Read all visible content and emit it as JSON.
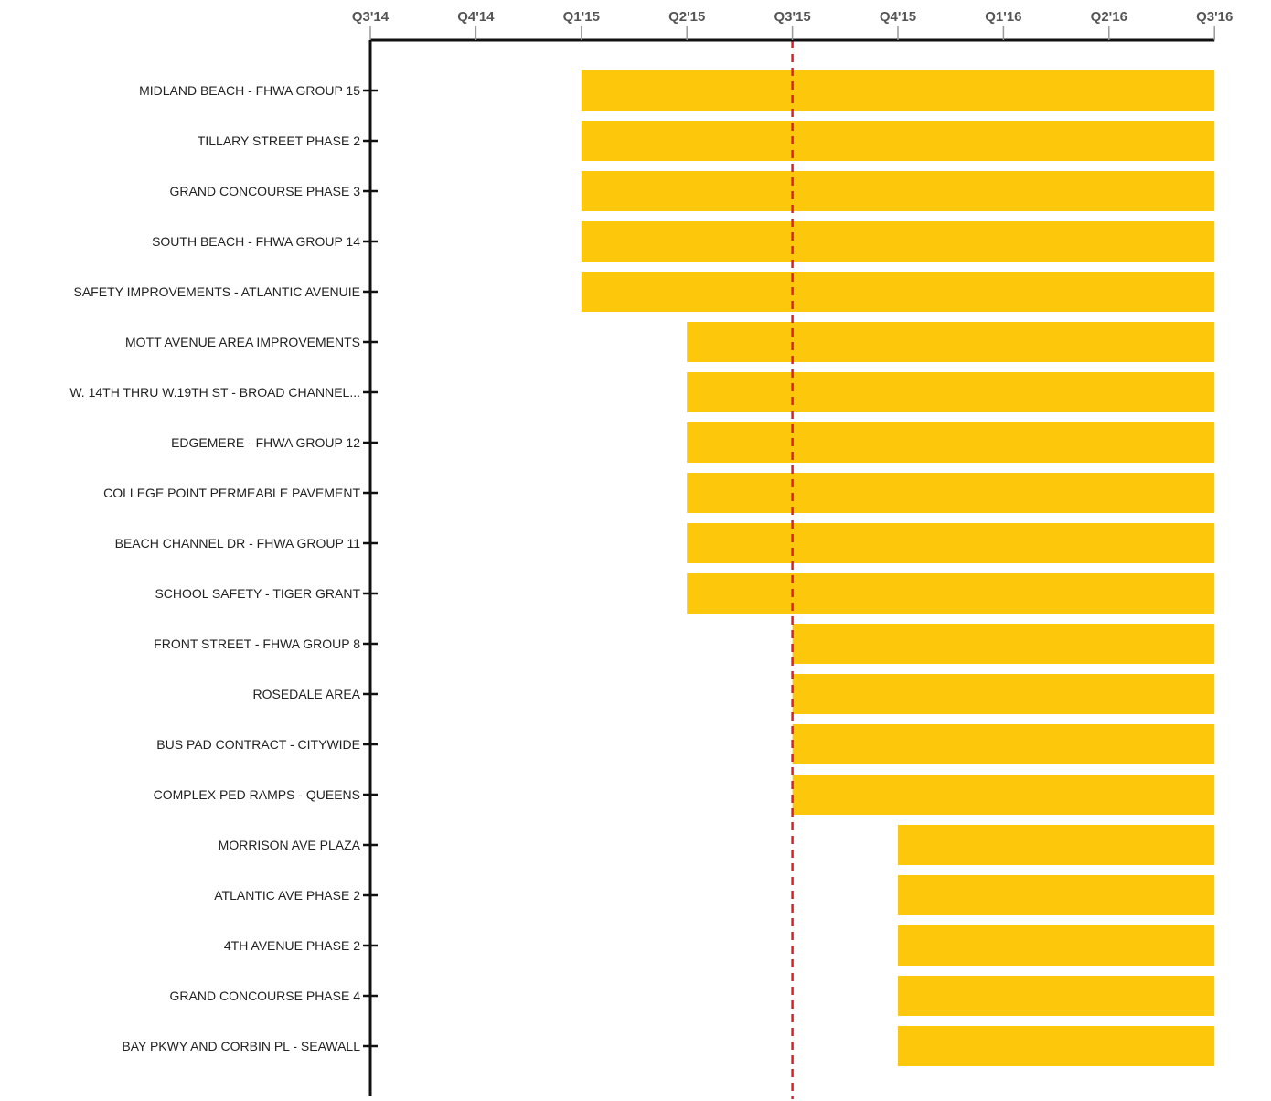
{
  "chart_data": {
    "type": "bar",
    "orientation": "horizontal",
    "subtype": "gantt",
    "x_ticks": [
      "Q3'14",
      "Q4'14",
      "Q1'15",
      "Q2'15",
      "Q3'15",
      "Q4'15",
      "Q1'16",
      "Q2'16",
      "Q3'16"
    ],
    "xlim": [
      "Q3'14",
      "Q3'16"
    ],
    "x_axis_position": "top",
    "reference_line": {
      "x": "Q3'15",
      "style": "dashed",
      "color": "#e02020"
    },
    "categories": [
      "MIDLAND BEACH - FHWA GROUP 15",
      "TILLARY STREET PHASE 2",
      "GRAND CONCOURSE PHASE 3",
      "SOUTH BEACH - FHWA GROUP 14",
      "SAFETY IMPROVEMENTS - ATLANTIC AVENUIE",
      "MOTT AVENUE AREA IMPROVEMENTS",
      "W. 14TH THRU W.19TH ST  - BROAD CHANNEL...",
      "EDGEMERE - FHWA GROUP 12",
      "COLLEGE POINT PERMEABLE PAVEMENT",
      "BEACH CHANNEL DR - FHWA GROUP 11",
      "SCHOOL SAFETY - TIGER GRANT",
      "FRONT STREET - FHWA GROUP 8",
      "ROSEDALE AREA",
      "BUS PAD CONTRACT - CITYWIDE",
      "COMPLEX PED RAMPS - QUEENS",
      "MORRISON AVE PLAZA",
      "ATLANTIC AVE PHASE 2",
      "4TH AVENUE PHASE 2",
      "GRAND CONCOURSE PHASE 4",
      "BAY PKWY AND CORBIN PL - SEAWALL"
    ],
    "start": [
      "Q1'15",
      "Q1'15",
      "Q1'15",
      "Q1'15",
      "Q1'15",
      "Q2'15",
      "Q2'15",
      "Q2'15",
      "Q2'15",
      "Q2'15",
      "Q2'15",
      "Q3'15",
      "Q3'15",
      "Q3'15",
      "Q3'15",
      "Q4'15",
      "Q4'15",
      "Q4'15",
      "Q4'15",
      "Q4'15"
    ],
    "end": [
      "Q3'16",
      "Q3'16",
      "Q3'16",
      "Q3'16",
      "Q3'16",
      "Q3'16",
      "Q3'16",
      "Q3'16",
      "Q3'16",
      "Q3'16",
      "Q3'16",
      "Q3'16",
      "Q3'16",
      "Q3'16",
      "Q3'16",
      "Q3'16",
      "Q3'16",
      "Q3'16",
      "Q3'16",
      "Q3'16"
    ],
    "bar_color": "#fdc80c",
    "grid": false,
    "legend": "none"
  }
}
